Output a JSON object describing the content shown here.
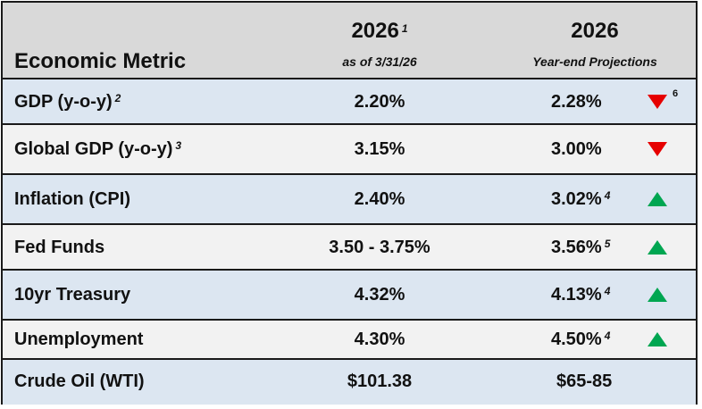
{
  "header": {
    "metric_label": "Economic Metric",
    "col1_year": "2026",
    "col1_footnote": "1",
    "col1_sub": "as of 3/31/26",
    "col2_year": "2026",
    "col2_sub": "Year-end Projections"
  },
  "rows": [
    {
      "metric": "GDP (y-o-y)",
      "metric_fn": "2",
      "current": "2.20%",
      "projection": "2.28%",
      "proj_fn": "",
      "trend": "down",
      "trend_note": "6"
    },
    {
      "metric": "Global GDP (y-o-y)",
      "metric_fn": "3",
      "current": "3.15%",
      "projection": "3.00%",
      "proj_fn": "",
      "trend": "down",
      "trend_note": ""
    },
    {
      "metric": "Inflation (CPI)",
      "metric_fn": "",
      "current": "2.40%",
      "projection": "3.02%",
      "proj_fn": "4",
      "trend": "up",
      "trend_note": ""
    },
    {
      "metric": "Fed Funds",
      "metric_fn": "",
      "current": "3.50 - 3.75%",
      "projection": "3.56%",
      "proj_fn": "5",
      "trend": "up",
      "trend_note": ""
    },
    {
      "metric": "10yr Treasury",
      "metric_fn": "",
      "current": "4.32%",
      "projection": "4.13%",
      "proj_fn": "4",
      "trend": "up",
      "trend_note": ""
    },
    {
      "metric": "Unemployment",
      "metric_fn": "",
      "current": "4.30%",
      "projection": "4.50%",
      "proj_fn": "4",
      "trend": "up",
      "trend_note": ""
    },
    {
      "metric": "Crude Oil (WTI)",
      "metric_fn": "",
      "current": "$101.38",
      "projection": "$65-85",
      "proj_fn": "",
      "trend": "",
      "trend_note": ""
    }
  ],
  "colors": {
    "down": "#e60000",
    "up": "#00a651",
    "header_bg": "#d9d9d9",
    "row_blue": "#dce6f1",
    "row_light": "#f2f2f2"
  }
}
